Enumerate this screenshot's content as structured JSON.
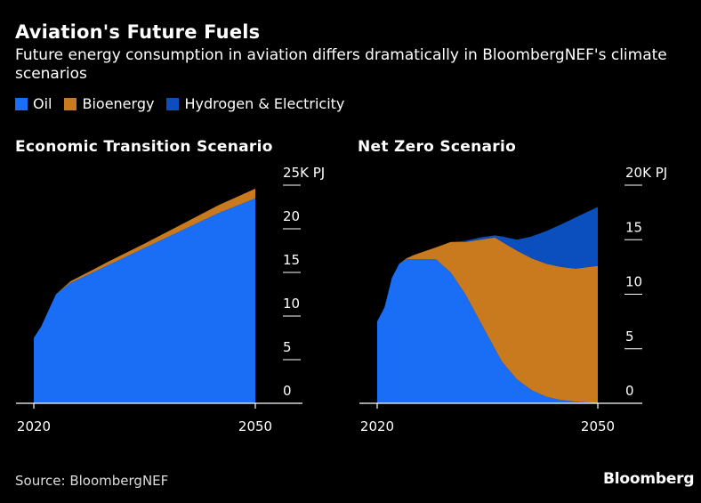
{
  "title": "Aviation's Future Fuels",
  "subtitle": "Future energy consumption in aviation differs dramatically in BloombergNEF's climate scenarios",
  "legend": [
    {
      "label": "Oil",
      "color": "#1a6ef5"
    },
    {
      "label": "Bioenergy",
      "color": "#c97a1f"
    },
    {
      "label": "Hydrogen & Electricity",
      "color": "#0a4fbd"
    }
  ],
  "source": "Source: BloombergNEF",
  "brand": "Bloomberg",
  "chart_data": [
    {
      "type": "area",
      "stacked": true,
      "title": "Economic Transition Scenario",
      "unit_label": "25K PJ",
      "x": [
        2020,
        2021,
        2023,
        2025,
        2028,
        2030,
        2035,
        2040,
        2045,
        2050
      ],
      "x_ticks": [
        "2020",
        "2050"
      ],
      "y_ticks": [
        0,
        5,
        10,
        15,
        20,
        25
      ],
      "ylim": [
        0,
        25
      ],
      "series": [
        {
          "name": "Oil",
          "values": [
            7.5,
            8.8,
            12.5,
            13.8,
            15.0,
            15.8,
            17.8,
            19.8,
            21.8,
            23.5
          ]
        },
        {
          "name": "Bioenergy",
          "values": [
            0,
            0,
            0,
            0.2,
            0.3,
            0.4,
            0.5,
            0.7,
            0.9,
            1.1
          ]
        },
        {
          "name": "Hydrogen & Electricity",
          "values": [
            0,
            0,
            0,
            0,
            0,
            0,
            0,
            0,
            0,
            0
          ]
        }
      ]
    },
    {
      "type": "area",
      "stacked": true,
      "title": "Net Zero Scenario",
      "unit_label": "20K PJ",
      "x": [
        2020,
        2021,
        2022,
        2023,
        2024,
        2025,
        2028,
        2030,
        2032,
        2034,
        2036,
        2037,
        2039,
        2041,
        2043,
        2045,
        2047,
        2050
      ],
      "x_ticks": [
        "2020",
        "2050"
      ],
      "y_ticks": [
        0,
        5,
        10,
        15,
        20
      ],
      "ylim": [
        0,
        20
      ],
      "series": [
        {
          "name": "Oil",
          "values": [
            7.5,
            8.8,
            11.5,
            12.8,
            13.2,
            13.2,
            13.2,
            12.0,
            10.0,
            7.5,
            5.0,
            3.8,
            2.2,
            1.2,
            0.6,
            0.3,
            0.15,
            0
          ]
        },
        {
          "name": "Bioenergy",
          "values": [
            0,
            0,
            0,
            0,
            0.1,
            0.4,
            1.1,
            2.8,
            4.8,
            7.5,
            10.2,
            11.0,
            11.8,
            12.1,
            12.2,
            12.2,
            12.2,
            12.6
          ]
        },
        {
          "name": "Hydrogen & Electricity",
          "values": [
            0,
            0,
            0,
            0,
            0,
            0,
            0,
            0,
            0.1,
            0.2,
            0.2,
            0.5,
            1.0,
            2.0,
            3.0,
            3.9,
            4.7,
            5.4
          ]
        }
      ]
    }
  ]
}
